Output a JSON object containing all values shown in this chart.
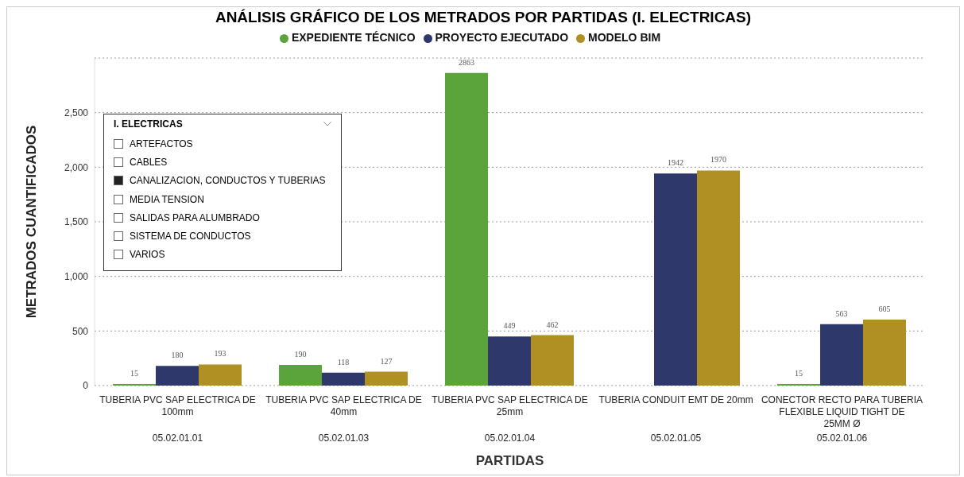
{
  "chart_data": {
    "type": "bar",
    "title": "ANÁLISIS GRÁFICO DE LOS METRADOS POR PARTIDAS (I. ELECTRICAS)",
    "xlabel": "PARTIDAS",
    "ylabel": "METRADOS CUANTIFICADOS",
    "categories": [
      "TUBERIA PVC SAP ELECTRICA DE 100mm",
      "TUBERIA PVC SAP ELECTRICA DE 40mm",
      "TUBERIA PVC SAP ELECTRICA DE 25mm",
      "TUBERIA CONDUIT EMT DE 20mm",
      "CONECTOR RECTO PARA TUBERIA FLEXIBLE LIQUID TIGHT DE 25MM Ø"
    ],
    "series": [
      {
        "name": "EXPEDIENTE TÉCNICO",
        "color": "#5ba33b",
        "values": [
          15,
          190,
          2863,
          null,
          15
        ]
      },
      {
        "name": "PROYECTO EJECUTADO",
        "color": "#2e386b",
        "values": [
          180,
          118,
          449,
          1942,
          563
        ]
      },
      {
        "name": "MODELO BIM",
        "color": "#b08f23",
        "values": [
          193,
          127,
          462,
          1970,
          605
        ]
      }
    ],
    "ylim": [
      0,
      3000
    ],
    "yticks": [
      0,
      500,
      {
        "value": 1000,
        "label": "1,000"
      },
      {
        "value": 1500,
        "label": "1,500"
      },
      {
        "value": 2000,
        "label": "2,000"
      },
      {
        "value": 2500,
        "label": "2,500"
      }
    ],
    "grid": "y",
    "legend": "top",
    "data_labels": true,
    "annotations": [
      "05.02.01.01",
      "05.02.01.03",
      "05.02.01.04",
      "05.02.01.05",
      "05.02.01.06",
      "I. ELECTRICAS",
      "ARTEFACTOS",
      "CABLES",
      "CANALIZACION, CONDUCTOS Y TUBERIAS",
      "MEDIA TENSION",
      "SALIDAS PARA ALUMBRADO",
      "SISTEMA DE CONDUCTOS",
      "VARIOS"
    ]
  }
}
